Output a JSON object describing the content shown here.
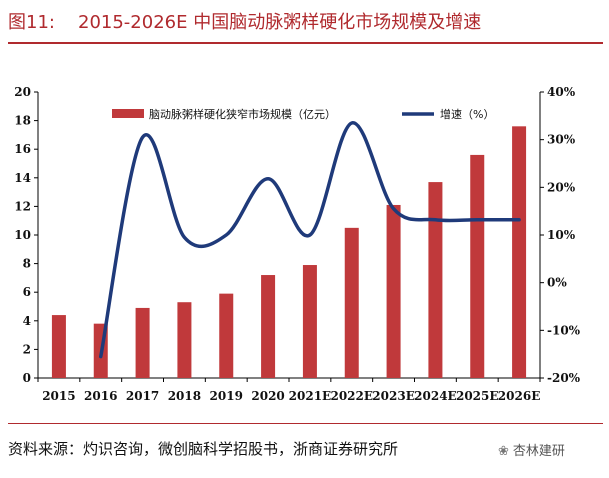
{
  "title": {
    "prefix": "图11:",
    "text": "2015-2026E 中国脑动脉粥样硬化市场规模及增速"
  },
  "source": "资料来源：灼识咨询，微创脑科学招股书，浙商证券研究所",
  "watermark": "杏林建研",
  "colors": {
    "bar": "#c0393b",
    "line": "#1f3a7a",
    "title": "#b02a2e"
  },
  "chart_data": {
    "type": "bar",
    "title": "2015-2026E 中国脑动脉粥样硬化市场规模及增速",
    "categories": [
      "2015",
      "2016",
      "2017",
      "2018",
      "2019",
      "2020",
      "2021E",
      "2022E",
      "2023E",
      "2024E",
      "2025E",
      "2026E"
    ],
    "series": [
      {
        "name": "脑动脉粥样硬化狭窄市场规模（亿元）",
        "type": "bar",
        "axis": "left",
        "values": [
          4.4,
          3.8,
          4.9,
          5.3,
          5.9,
          7.2,
          7.9,
          10.5,
          12.1,
          13.7,
          15.6,
          17.6
        ]
      },
      {
        "name": "增速（%）",
        "type": "line",
        "axis": "right",
        "smooth": true,
        "values": [
          null,
          -15.5,
          30.5,
          9.5,
          10.0,
          21.8,
          10.0,
          33.5,
          15.5,
          13.2,
          13.2,
          13.2
        ]
      }
    ],
    "y_left": {
      "min": 0,
      "max": 20,
      "step": 2,
      "ticks": [
        "0",
        "2",
        "4",
        "6",
        "8",
        "10",
        "12",
        "14",
        "16",
        "18",
        "20"
      ]
    },
    "y_right": {
      "min": -20,
      "max": 40,
      "step": 10,
      "ticks": [
        "-20%",
        "-10%",
        "0%",
        "10%",
        "20%",
        "30%",
        "40%"
      ]
    },
    "legend_position": "top",
    "grid": false
  }
}
